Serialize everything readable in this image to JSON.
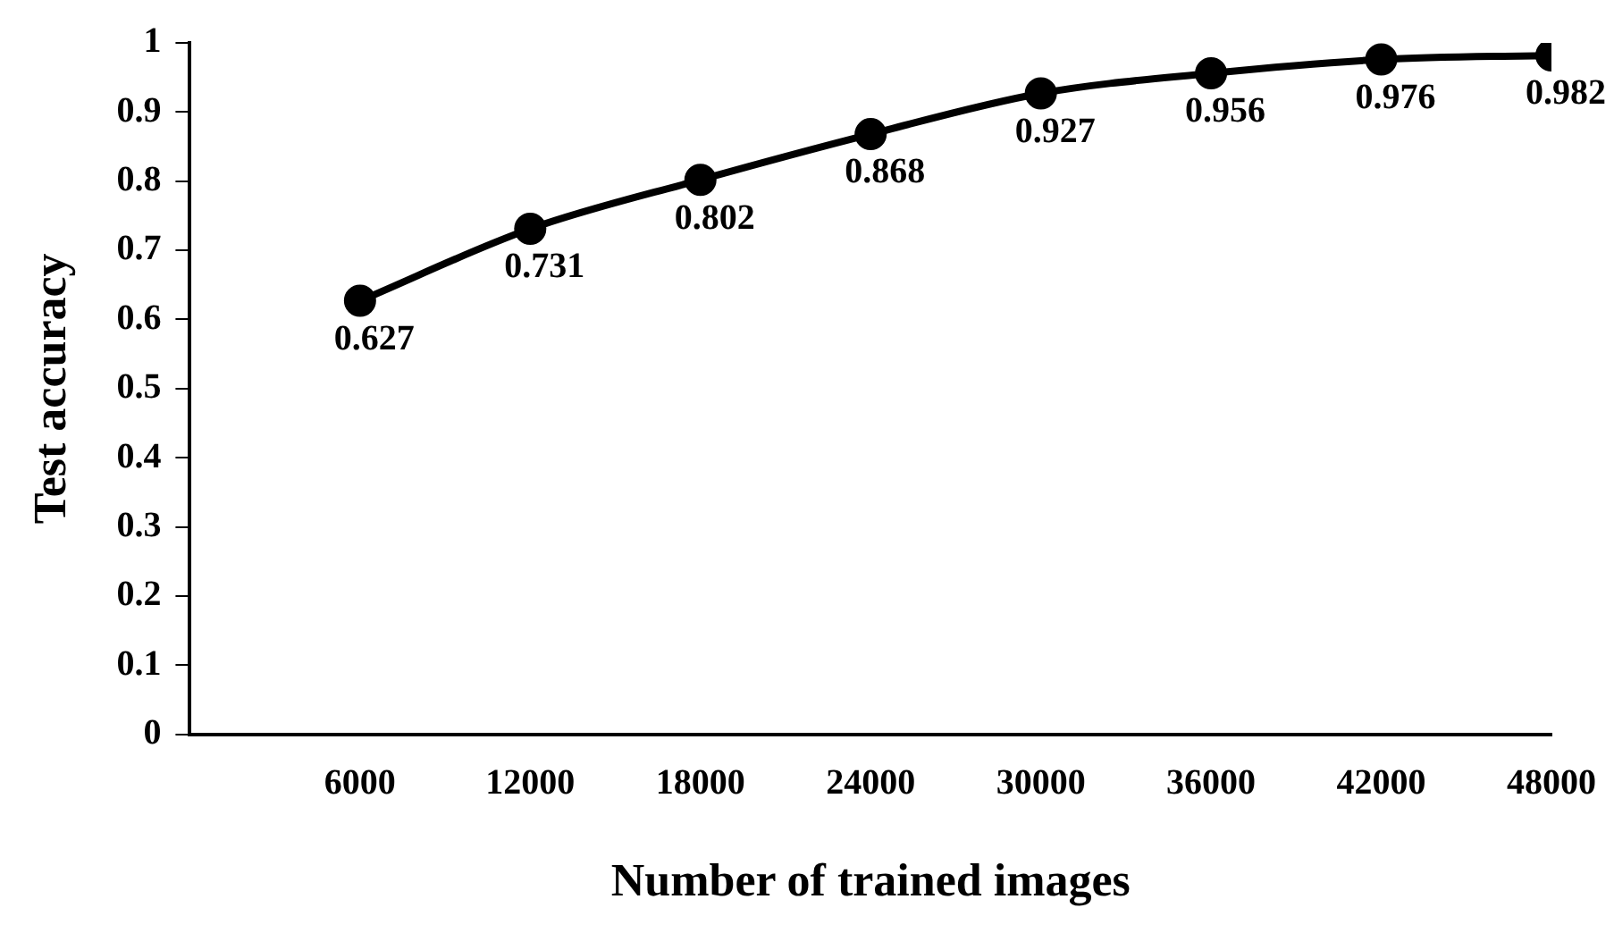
{
  "chart_data": {
    "type": "line",
    "xlabel": "Number of trained images",
    "ylabel": "Test accuracy",
    "x": [
      6000,
      12000,
      18000,
      24000,
      30000,
      36000,
      42000,
      48000
    ],
    "series": [
      {
        "color": "#000000",
        "values": [
          0.627,
          0.731,
          0.802,
          0.868,
          0.927,
          0.956,
          0.976,
          0.982
        ]
      }
    ],
    "xlim": [
      0,
      48000
    ],
    "xticks": [
      6000,
      12000,
      18000,
      24000,
      30000,
      36000,
      42000,
      48000
    ],
    "ylim": [
      0,
      1
    ],
    "yticks": [
      0,
      0.1,
      0.2,
      0.3,
      0.4,
      0.5,
      0.6,
      0.7,
      0.8,
      0.9,
      1
    ],
    "grid": false,
    "legend": false,
    "marker": "circle",
    "line_style": "solid",
    "data_labels": true
  }
}
